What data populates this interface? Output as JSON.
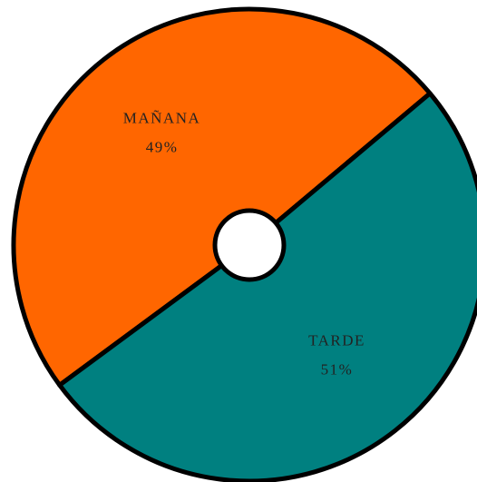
{
  "chart_data": {
    "type": "pie",
    "categories": [
      "MAÑANA",
      "TARDE"
    ],
    "values": [
      49,
      51
    ],
    "value_labels": [
      "49%",
      "51%"
    ],
    "colors": [
      "#ff6600",
      "#008080"
    ]
  }
}
